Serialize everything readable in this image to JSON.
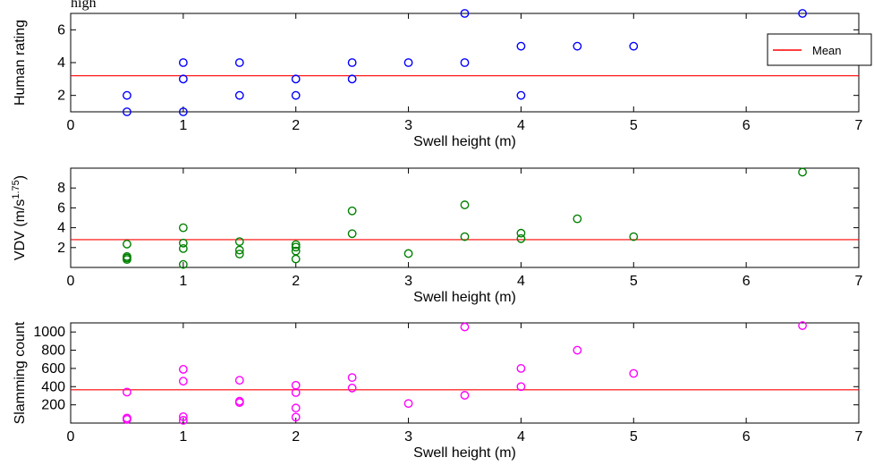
{
  "page": {
    "header_fragment": "high"
  },
  "chart_data": [
    {
      "type": "scatter",
      "title": "",
      "xlabel": "Swell height (m)",
      "ylabel": "Human rating",
      "xlim": [
        0,
        7
      ],
      "ylim": [
        1,
        7
      ],
      "xticks": [
        "0",
        "1",
        "2",
        "3",
        "4",
        "5",
        "6",
        "7"
      ],
      "yticks": [
        "2",
        "4",
        "6"
      ],
      "marker_color": "#0000ff",
      "mean_color": "#ff0000",
      "mean_value": 3.2,
      "legend": {
        "label": "Mean",
        "position": "top-right"
      },
      "points": [
        {
          "x": 0.5,
          "y": 2
        },
        {
          "x": 0.5,
          "y": 1
        },
        {
          "x": 1,
          "y": 4
        },
        {
          "x": 1,
          "y": 3
        },
        {
          "x": 1,
          "y": 1
        },
        {
          "x": 1.5,
          "y": 4
        },
        {
          "x": 1.5,
          "y": 2
        },
        {
          "x": 2,
          "y": 3
        },
        {
          "x": 2,
          "y": 2
        },
        {
          "x": 2.5,
          "y": 4
        },
        {
          "x": 2.5,
          "y": 3
        },
        {
          "x": 3,
          "y": 4
        },
        {
          "x": 3.5,
          "y": 7
        },
        {
          "x": 3.5,
          "y": 4
        },
        {
          "x": 4,
          "y": 5
        },
        {
          "x": 4,
          "y": 2
        },
        {
          "x": 4.5,
          "y": 5
        },
        {
          "x": 5,
          "y": 5
        },
        {
          "x": 6.5,
          "y": 7
        }
      ]
    },
    {
      "type": "scatter",
      "title": "",
      "xlabel": "Swell height (m)",
      "ylabel": "VDV  (m/s",
      "ylabel_sup": "1.75",
      "ylabel_tail": ")",
      "xlim": [
        0,
        7
      ],
      "ylim": [
        0,
        10
      ],
      "xticks": [
        "0",
        "1",
        "2",
        "3",
        "4",
        "5",
        "6",
        "7"
      ],
      "yticks": [
        "2",
        "4",
        "6",
        "8"
      ],
      "marker_color": "#008000",
      "mean_color": "#ff0000",
      "mean_value": 2.8,
      "points": [
        {
          "x": 0.5,
          "y": 2.35
        },
        {
          "x": 0.5,
          "y": 1.1
        },
        {
          "x": 0.5,
          "y": 0.95
        },
        {
          "x": 0.5,
          "y": 0.8
        },
        {
          "x": 1,
          "y": 4.0
        },
        {
          "x": 1,
          "y": 2.45
        },
        {
          "x": 1,
          "y": 1.9
        },
        {
          "x": 1,
          "y": 0.3
        },
        {
          "x": 1.5,
          "y": 2.6
        },
        {
          "x": 1.5,
          "y": 1.75
        },
        {
          "x": 1.5,
          "y": 1.35
        },
        {
          "x": 2,
          "y": 2.3
        },
        {
          "x": 2,
          "y": 2.05
        },
        {
          "x": 2,
          "y": 1.65
        },
        {
          "x": 2,
          "y": 0.85
        },
        {
          "x": 2.5,
          "y": 5.7
        },
        {
          "x": 2.5,
          "y": 3.4
        },
        {
          "x": 3,
          "y": 1.4
        },
        {
          "x": 3.5,
          "y": 6.3
        },
        {
          "x": 3.5,
          "y": 3.1
        },
        {
          "x": 4,
          "y": 3.45
        },
        {
          "x": 4,
          "y": 2.9
        },
        {
          "x": 4.5,
          "y": 4.9
        },
        {
          "x": 5,
          "y": 3.1
        },
        {
          "x": 6.5,
          "y": 9.6
        }
      ]
    },
    {
      "type": "scatter",
      "title": "",
      "xlabel": "Swell height (m)",
      "ylabel": "Slamming count",
      "xlim": [
        0,
        7
      ],
      "ylim": [
        0,
        1100
      ],
      "xticks": [
        "0",
        "1",
        "2",
        "3",
        "4",
        "5",
        "6",
        "7"
      ],
      "yticks": [
        "200",
        "400",
        "600",
        "800",
        "1000"
      ],
      "marker_color": "#ff00ff",
      "mean_color": "#ff0000",
      "mean_value": 365,
      "points": [
        {
          "x": 0.5,
          "y": 340
        },
        {
          "x": 0.5,
          "y": 55
        },
        {
          "x": 0.5,
          "y": 40
        },
        {
          "x": 1,
          "y": 590
        },
        {
          "x": 1,
          "y": 460
        },
        {
          "x": 1,
          "y": 70
        },
        {
          "x": 1,
          "y": 30
        },
        {
          "x": 1.5,
          "y": 470
        },
        {
          "x": 1.5,
          "y": 240
        },
        {
          "x": 1.5,
          "y": 225
        },
        {
          "x": 2,
          "y": 415
        },
        {
          "x": 2,
          "y": 335
        },
        {
          "x": 2,
          "y": 165
        },
        {
          "x": 2,
          "y": 65
        },
        {
          "x": 2.5,
          "y": 500
        },
        {
          "x": 2.5,
          "y": 385
        },
        {
          "x": 3,
          "y": 215
        },
        {
          "x": 3.5,
          "y": 1055
        },
        {
          "x": 3.5,
          "y": 305
        },
        {
          "x": 4,
          "y": 600
        },
        {
          "x": 4,
          "y": 400
        },
        {
          "x": 4.5,
          "y": 800
        },
        {
          "x": 5,
          "y": 545
        },
        {
          "x": 6.5,
          "y": 1070
        }
      ]
    }
  ]
}
